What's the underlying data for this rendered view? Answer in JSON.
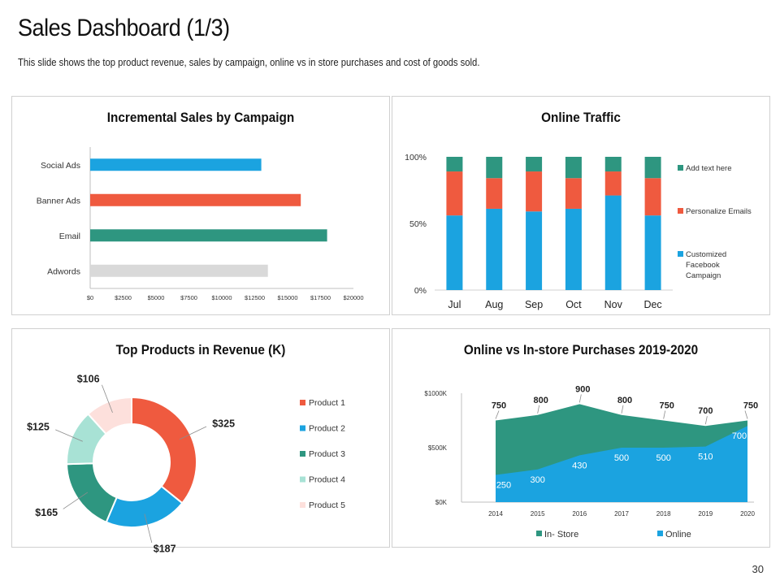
{
  "page": {
    "title": "Sales Dashboard (1/3)",
    "subtitle": "This slide shows the top product revenue, sales by campaign, online vs in store purchases and cost of goods sold.",
    "page_number": "30"
  },
  "chart_data": [
    {
      "type": "bar",
      "orientation": "horizontal",
      "title": "Incremental Sales by Campaign",
      "categories": [
        "Social Ads",
        "Banner Ads",
        "Email",
        "Adwords"
      ],
      "values": [
        13000,
        16000,
        18000,
        13500
      ],
      "colors": [
        "#1ba3e0",
        "#ef5a3f",
        "#2e9680",
        "#d9d9d9"
      ],
      "xlim": [
        0,
        20000
      ],
      "xticks": [
        "$0",
        "$2500",
        "$5000",
        "$7500",
        "$10000",
        "$12500",
        "$15000",
        "$17500",
        "$20000"
      ],
      "grid": false
    },
    {
      "type": "bar",
      "stacked": "percent",
      "title": "Online Traffic",
      "categories": [
        "Jul",
        "Aug",
        "Sep",
        "Oct",
        "Nov",
        "Dec"
      ],
      "yticks": [
        "0%",
        "50%",
        "100%"
      ],
      "series": [
        {
          "name": "Customized Facebook Campaign",
          "color": "#1ba3e0",
          "values": [
            56,
            61,
            59,
            61,
            71,
            56
          ]
        },
        {
          "name": "Personalize Emails",
          "color": "#ef5a3f",
          "values": [
            33,
            23,
            30,
            23,
            18,
            28
          ]
        },
        {
          "name": "Add text here",
          "color": "#2e9680",
          "values": [
            11,
            16,
            11,
            16,
            11,
            16
          ]
        }
      ],
      "legend": "right"
    },
    {
      "type": "pie",
      "donut": true,
      "title": "Top Products in Revenue (K)",
      "slices": [
        {
          "name": "Product 1",
          "value": 325,
          "label": "$325",
          "color": "#ef5a3f"
        },
        {
          "name": "Product 2",
          "value": 187,
          "label": "$187",
          "color": "#1ba3e0"
        },
        {
          "name": "Product 3",
          "value": 165,
          "label": "$165",
          "color": "#2e9680"
        },
        {
          "name": "Product 4",
          "value": 125,
          "label": "$125",
          "color": "#a8e2d5"
        },
        {
          "name": "Product 5",
          "value": 106,
          "label": "$106",
          "color": "#fde0dc"
        }
      ],
      "legend": "right"
    },
    {
      "type": "area",
      "title": "Online vs In-store Purchases 2019-2020",
      "x": [
        "2014",
        "2015",
        "2016",
        "2017",
        "2018",
        "2019",
        "2020"
      ],
      "ylim": [
        0,
        1000
      ],
      "yticks": [
        "$0K",
        "$500K",
        "$1000K"
      ],
      "series": [
        {
          "name": "In- Store",
          "color": "#2e9680",
          "values": [
            750,
            800,
            900,
            800,
            750,
            700,
            750
          ]
        },
        {
          "name": "Online",
          "color": "#1ba3e0",
          "values": [
            250,
            300,
            430,
            500,
            500,
            510,
            700
          ]
        }
      ],
      "legend": "bottom"
    }
  ]
}
